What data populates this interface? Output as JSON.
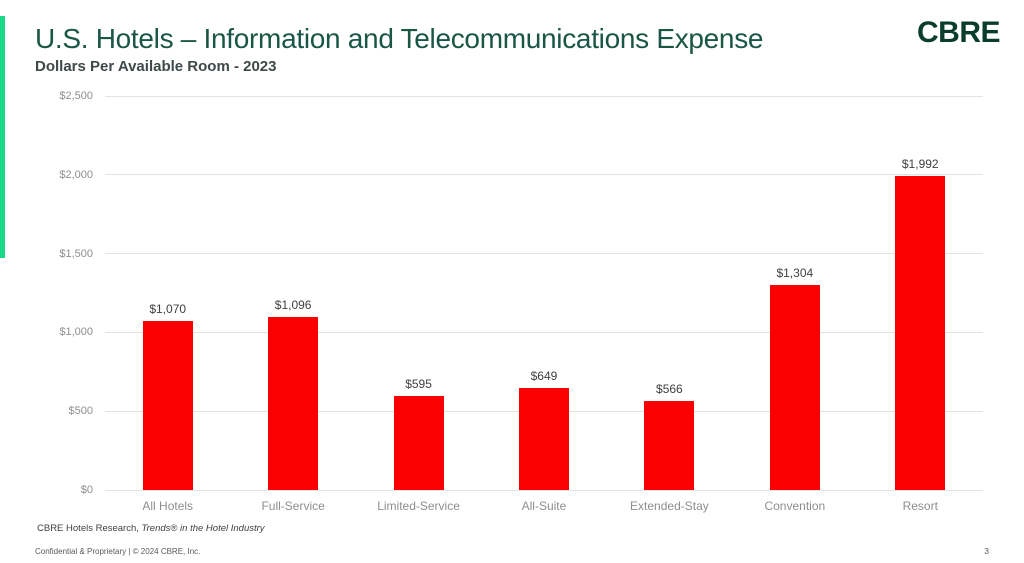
{
  "header": {
    "title": "U.S. Hotels – Information and Telecommunications Expense",
    "subtitle": "Dollars Per Available Room - 2023",
    "logo": "CBRE"
  },
  "footer": {
    "source_normal": "CBRE Hotels Research, ",
    "source_italic": "Trends® in the Hotel Industry",
    "confidential": "Confidential & Proprietary | © 2024 CBRE, Inc.",
    "page_number": "3"
  },
  "colors": {
    "title_green": "#1A5646",
    "logo_green": "#0B3D2C",
    "accent_green": "#1BD78A",
    "bar_red": "#FB0000",
    "gridline": "#E3E3E3",
    "axis_label_gray": "#8E8E8E",
    "data_label_gray": "#404040",
    "subtitle_gray": "#3E4A49",
    "footer_gray": "#595959"
  },
  "chart_data": {
    "type": "bar",
    "title": "U.S. Hotels – Information and Telecommunications Expense",
    "subtitle": "Dollars Per Available Room - 2023",
    "categories": [
      "All Hotels",
      "Full-Service",
      "Limited-Service",
      "All-Suite",
      "Extended-Stay",
      "Convention",
      "Resort"
    ],
    "values": [
      1070,
      1096,
      595,
      649,
      566,
      1304,
      1992
    ],
    "value_labels": [
      "$1,070",
      "$1,096",
      "$595",
      "$649",
      "$566",
      "$1,304",
      "$1,992"
    ],
    "xlabel": "",
    "ylabel": "",
    "ylim": [
      0,
      2500
    ],
    "ytick_interval": 500,
    "ytick_labels": [
      "$0",
      "$500",
      "$1,000",
      "$1,500",
      "$2,000",
      "$2,500"
    ],
    "grid": true,
    "legend": false,
    "bar_color": "#FB0000"
  }
}
